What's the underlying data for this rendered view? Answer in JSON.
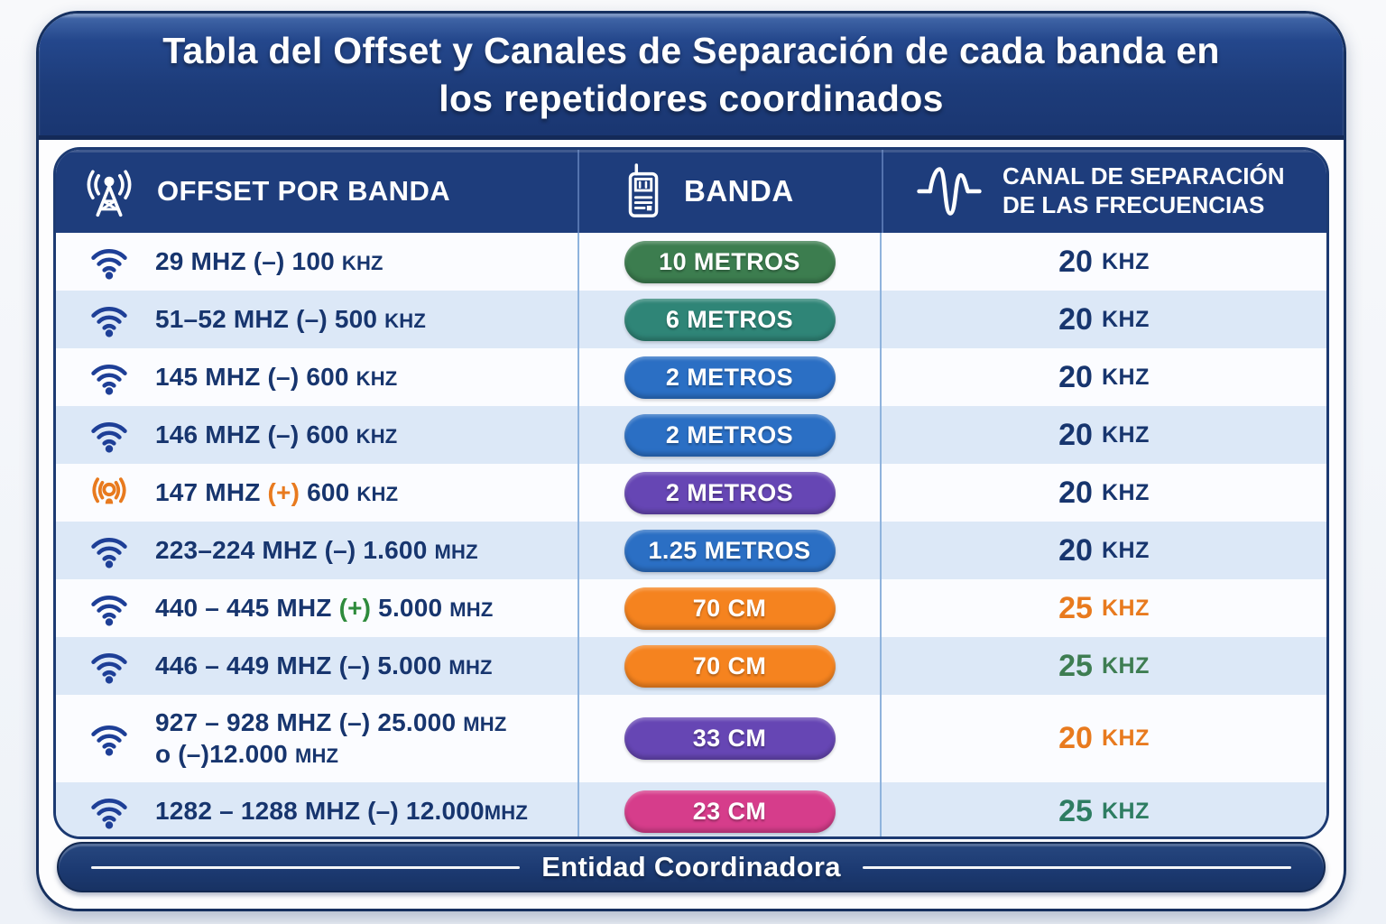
{
  "title": "Tabla del Offset y Canales de Separación de cada banda en los repetidores coordinados",
  "header": {
    "columns": [
      {
        "icon": "radio-tower-icon",
        "label": "OFFSET POR BANDA"
      },
      {
        "icon": "walkie-talkie-icon",
        "label": "BANDA"
      },
      {
        "icon": "waveform-icon",
        "label": "CANAL DE SEPARACIÓN DE LAS FRECUENCIAS"
      }
    ]
  },
  "footer": {
    "label": "Entidad Coordinadora"
  },
  "colors": {
    "navy_border": "#1c3a72",
    "header_bg": "#1e3d7c",
    "text_navy": "#17356e",
    "row_white": "#fbfcff",
    "row_blue": "#dce8f7",
    "accent_orange": "#e87a1e",
    "accent_green": "#2e8b3c",
    "accent_teal_green": "#2e7d62",
    "pill_green": "#3c7d4f",
    "pill_teal": "#2f8577",
    "pill_blue": "#2b6fc4",
    "pill_purple": "#6646b4",
    "pill_orange": "#f5831f",
    "pill_pink": "#d63d8b"
  },
  "table": {
    "rows": [
      {
        "icon": "wifi-icon",
        "icon_color": "#1e3f97",
        "offset": [
          {
            "t": "29 MHZ (–) 100 "
          },
          {
            "t": "KHZ",
            "small": true
          }
        ],
        "band": {
          "label": "10 METROS",
          "color": "#3c7d4f"
        },
        "channel": {
          "value": "20",
          "unit": "KHZ",
          "color": "#17356e"
        }
      },
      {
        "icon": "wifi-icon",
        "icon_color": "#1e3f97",
        "offset": [
          {
            "t": "51–52 MHZ (–) 500 "
          },
          {
            "t": "KHZ",
            "small": true
          }
        ],
        "band": {
          "label": "6 METROS",
          "color": "#2f8577"
        },
        "channel": {
          "value": "20",
          "unit": "KHZ",
          "color": "#17356e"
        }
      },
      {
        "icon": "wifi-icon",
        "icon_color": "#1e3f97",
        "offset": [
          {
            "t": "145 MHZ (–) 600 "
          },
          {
            "t": "KHZ",
            "small": true
          }
        ],
        "band": {
          "label": "2 METROS",
          "color": "#2b6fc4"
        },
        "channel": {
          "value": "20",
          "unit": "KHZ",
          "color": "#17356e"
        }
      },
      {
        "icon": "wifi-icon",
        "icon_color": "#1e3f97",
        "offset": [
          {
            "t": "146 MHZ (–) 600 "
          },
          {
            "t": "KHZ",
            "small": true
          }
        ],
        "band": {
          "label": "2 METROS",
          "color": "#2b6fc4"
        },
        "channel": {
          "value": "20",
          "unit": "KHZ",
          "color": "#17356e"
        }
      },
      {
        "icon": "broadcast-icon",
        "icon_color": "#e87a1e",
        "offset": [
          {
            "t": "147 MHZ "
          },
          {
            "t": "(+)",
            "color": "#e87a1e"
          },
          {
            "t": " 600 "
          },
          {
            "t": "KHZ",
            "small": true
          }
        ],
        "band": {
          "label": "2 METROS",
          "color": "#6646b4"
        },
        "channel": {
          "value": "20",
          "unit": "KHZ",
          "color": "#17356e"
        }
      },
      {
        "icon": "wifi-icon",
        "icon_color": "#1e3f97",
        "offset": [
          {
            "t": "223–224 MHZ (–) 1.600 "
          },
          {
            "t": "MHZ",
            "small": true
          }
        ],
        "band": {
          "label": "1.25 METROS",
          "color": "#2b6fc4"
        },
        "channel": {
          "value": "20",
          "unit": "KHZ",
          "color": "#17356e"
        }
      },
      {
        "icon": "wifi-icon",
        "icon_color": "#1e3f97",
        "offset": [
          {
            "t": "440 – 445 MHZ "
          },
          {
            "t": "(+)",
            "color": "#2e8b3c"
          },
          {
            "t": " 5.000 "
          },
          {
            "t": "MHZ",
            "small": true
          }
        ],
        "band": {
          "label": "70 CM",
          "color": "#f5831f"
        },
        "channel": {
          "value": "25",
          "unit": "KHZ",
          "color": "#e87a1e"
        }
      },
      {
        "icon": "wifi-icon",
        "icon_color": "#1e3f97",
        "offset": [
          {
            "t": "446 – 449 MHZ (–) 5.000 "
          },
          {
            "t": "MHZ",
            "small": true
          }
        ],
        "band": {
          "label": "70 CM",
          "color": "#f5831f"
        },
        "channel": {
          "value": "25",
          "unit": "KHZ",
          "color": "#3e7d52"
        }
      },
      {
        "icon": "wifi-icon",
        "icon_color": "#1e3f97",
        "offset": [
          {
            "t": "927 – 928 MHZ (–) 25.000 "
          },
          {
            "t": "MHZ",
            "small": true
          },
          {
            "br": true
          },
          {
            "t": "o (–)12.000 "
          },
          {
            "t": "MHZ",
            "small": true
          }
        ],
        "band": {
          "label": "33 CM",
          "color": "#6646b4"
        },
        "channel": {
          "value": "20",
          "unit": "KHZ",
          "color": "#e87a1e"
        }
      },
      {
        "icon": "wifi-icon",
        "icon_color": "#1e3f97",
        "offset": [
          {
            "t": "1282 – 1288 MHZ (–) 12.000"
          },
          {
            "t": "MHZ",
            "small": true
          }
        ],
        "band": {
          "label": "23 CM",
          "color": "#d63d8b"
        },
        "channel": {
          "value": "25",
          "unit": "KHZ",
          "color": "#2e7d62"
        }
      }
    ]
  },
  "chart_data": {
    "type": "table",
    "title": "Tabla del Offset y Canales de Separación de cada banda en los repetidores coordinados",
    "columns": [
      "OFFSET POR BANDA",
      "BANDA",
      "CANAL DE SEPARACIÓN DE LAS FRECUENCIAS"
    ],
    "rows": [
      [
        "29 MHZ (–) 100 KHZ",
        "10 METROS",
        "20 KHZ"
      ],
      [
        "51–52 MHZ (–) 500 KHZ",
        "6 METROS",
        "20 KHZ"
      ],
      [
        "145 MHZ (–) 600 KHZ",
        "2 METROS",
        "20 KHZ"
      ],
      [
        "146 MHZ (–) 600 KHZ",
        "2 METROS",
        "20 KHZ"
      ],
      [
        "147 MHZ (+) 600 KHZ",
        "2 METROS",
        "20 KHZ"
      ],
      [
        "223–224 MHZ (–) 1.600 MHZ",
        "1.25 METROS",
        "20 KHZ"
      ],
      [
        "440 – 445 MHZ (+) 5.000 MHZ",
        "70 CM",
        "25 KHZ"
      ],
      [
        "446 – 449 MHZ (–) 5.000 MHZ",
        "70 CM",
        "25 KHZ"
      ],
      [
        "927 – 928 MHZ (–) 25.000 MHZ o (–)12.000 MHZ",
        "33 CM",
        "20 KHZ"
      ],
      [
        "1282 – 1288 MHZ (–) 12.000MHZ",
        "23 CM",
        "25 KHZ"
      ]
    ],
    "footer": "Entidad Coordinadora"
  }
}
